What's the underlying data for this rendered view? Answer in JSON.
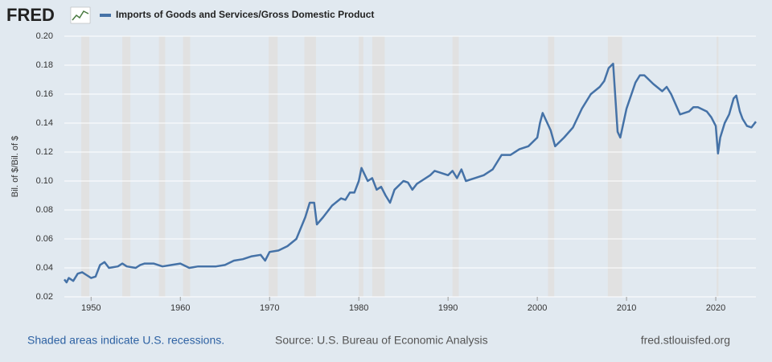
{
  "logo": "FRED",
  "chart_data": {
    "type": "line",
    "series": [
      {
        "name": "Imports of Goods and Services/Gross Domestic Product",
        "color": "#4572a7",
        "x": [
          1947,
          1947.25,
          1947.5,
          1948,
          1948.5,
          1949,
          1949.5,
          1950,
          1950.5,
          1951,
          1951.5,
          1952,
          1953,
          1953.5,
          1954,
          1955,
          1955.5,
          1956,
          1957,
          1958,
          1959,
          1960,
          1961,
          1962,
          1963,
          1964,
          1965,
          1966,
          1967,
          1968,
          1969,
          1969.5,
          1970,
          1971,
          1972,
          1973,
          1974,
          1974.5,
          1975,
          1975.3,
          1976,
          1977,
          1978,
          1978.5,
          1979,
          1979.5,
          1980,
          1980.3,
          1981,
          1981.5,
          1982,
          1982.5,
          1983,
          1983.5,
          1984,
          1985,
          1985.5,
          1986,
          1986.5,
          1987,
          1988,
          1988.5,
          1989,
          1990,
          1990.5,
          1991,
          1991.5,
          1992,
          1993,
          1994,
          1995,
          1996,
          1997,
          1998,
          1999,
          2000,
          2000.3,
          2000.6,
          2001.5,
          2002,
          2003,
          2004,
          2005,
          2006,
          2007,
          2007.5,
          2008,
          2008.5,
          2009,
          2009.3,
          2010,
          2011,
          2011.5,
          2012,
          2013,
          2014,
          2014.5,
          2015,
          2016,
          2017,
          2017.5,
          2018,
          2019,
          2019.5,
          2020,
          2020.25,
          2020.5,
          2021,
          2021.5,
          2022,
          2022.3,
          2022.7,
          2023,
          2023.5,
          2024,
          2024.5
        ],
        "values": [
          0.032,
          0.03,
          0.033,
          0.031,
          0.036,
          0.037,
          0.035,
          0.033,
          0.034,
          0.042,
          0.044,
          0.04,
          0.041,
          0.043,
          0.041,
          0.04,
          0.042,
          0.043,
          0.043,
          0.041,
          0.042,
          0.043,
          0.04,
          0.041,
          0.041,
          0.041,
          0.042,
          0.045,
          0.046,
          0.048,
          0.049,
          0.045,
          0.051,
          0.052,
          0.055,
          0.06,
          0.075,
          0.085,
          0.085,
          0.07,
          0.075,
          0.083,
          0.088,
          0.087,
          0.092,
          0.092,
          0.1,
          0.109,
          0.1,
          0.102,
          0.094,
          0.096,
          0.09,
          0.085,
          0.094,
          0.1,
          0.099,
          0.094,
          0.098,
          0.1,
          0.104,
          0.107,
          0.106,
          0.104,
          0.107,
          0.102,
          0.108,
          0.1,
          0.102,
          0.104,
          0.108,
          0.118,
          0.118,
          0.122,
          0.124,
          0.13,
          0.14,
          0.147,
          0.135,
          0.124,
          0.13,
          0.137,
          0.15,
          0.16,
          0.165,
          0.169,
          0.178,
          0.181,
          0.134,
          0.13,
          0.15,
          0.168,
          0.173,
          0.173,
          0.167,
          0.162,
          0.165,
          0.16,
          0.146,
          0.148,
          0.151,
          0.151,
          0.148,
          0.144,
          0.138,
          0.119,
          0.13,
          0.14,
          0.146,
          0.157,
          0.159,
          0.148,
          0.143,
          0.138,
          0.137,
          0.141
        ]
      }
    ],
    "recessions": [
      [
        1948.9,
        1949.8
      ],
      [
        1953.5,
        1954.4
      ],
      [
        1957.6,
        1958.3
      ],
      [
        1960.3,
        1961.1
      ],
      [
        1969.9,
        1970.9
      ],
      [
        1973.9,
        1975.2
      ],
      [
        1980.0,
        1980.5
      ],
      [
        1981.5,
        1982.9
      ],
      [
        1990.5,
        1991.2
      ],
      [
        2001.2,
        2001.9
      ],
      [
        2007.9,
        2009.5
      ],
      [
        2020.1,
        2020.3
      ]
    ],
    "ylabel": "Bil. of $/Bil. of $",
    "xlim": [
      1947,
      2024.5
    ],
    "xticks": [
      1950,
      1960,
      1970,
      1980,
      1990,
      2000,
      2010,
      2020
    ],
    "ylim": [
      0.02,
      0.2
    ],
    "yticks": [
      0.02,
      0.04,
      0.06,
      0.08,
      {
        "value": 0.1,
        "label": "0.10"
      },
      0.12,
      0.14,
      0.16,
      0.18,
      {
        "value": 0.2,
        "label": "0.20"
      }
    ],
    "grid": true,
    "recession_color": "#e1e1e1",
    "notes": [
      "Shaded areas indicate U.S. recessions.",
      "Source: U.S. Bureau of Economic Analysis",
      "fred.stlouisfed.org"
    ]
  }
}
